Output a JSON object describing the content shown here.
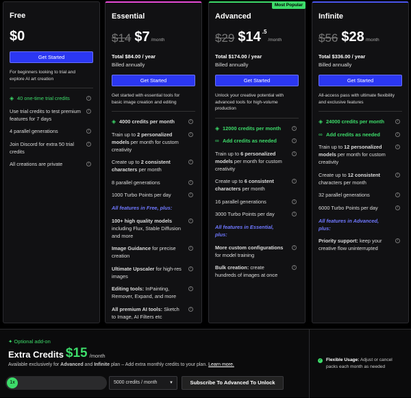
{
  "plans": [
    {
      "name": "Free",
      "price": "$0",
      "button": "Get Started",
      "description": "For beginners looking to trial and explore AI art creation",
      "features": [
        {
          "kind": "credit",
          "accent": true,
          "parts": [
            {
              "text": "40 one-time trial credits",
              "bold": false
            }
          ]
        },
        {
          "kind": "plain",
          "parts": [
            {
              "text": "Use trial credits to test premium features for 7 days",
              "bold": false
            }
          ]
        },
        {
          "kind": "plain",
          "parts": [
            {
              "text": "4 parallel generations",
              "bold": false
            }
          ]
        },
        {
          "kind": "plain",
          "parts": [
            {
              "text": "Join Discord for extra 50 trial credits",
              "bold": false
            }
          ]
        },
        {
          "kind": "plain",
          "parts": [
            {
              "text": "All creations are private",
              "bold": false
            }
          ]
        }
      ]
    },
    {
      "name": "Essential",
      "top_color": "#e84bd8",
      "old_price": "$14",
      "price": "$7",
      "period": "/month",
      "total": "Total $84.00 / year",
      "billing": "Billed annually",
      "button": "Get Started",
      "description": "Get started with essential tools for basic image creation and editing",
      "features": [
        {
          "kind": "credit",
          "accent": false,
          "parts": [
            {
              "text": "4000 credits per month",
              "bold": true
            }
          ]
        },
        {
          "kind": "plain",
          "parts": [
            {
              "text": "Train up to ",
              "bold": false
            },
            {
              "text": "2 personalized models",
              "bold": true
            },
            {
              "text": " per month for custom creativity",
              "bold": false
            }
          ]
        },
        {
          "kind": "plain",
          "parts": [
            {
              "text": "Create up to ",
              "bold": false
            },
            {
              "text": "2 consistent characters",
              "bold": true
            },
            {
              "text": " per month",
              "bold": false
            }
          ]
        },
        {
          "kind": "plain",
          "parts": [
            {
              "text": "8 parallel generations",
              "bold": false
            }
          ]
        },
        {
          "kind": "plain",
          "parts": [
            {
              "text": "1000 Turbo Points per day",
              "bold": false
            }
          ]
        },
        {
          "kind": "heading",
          "parts": [
            {
              "text": "All features in Free, plus:",
              "bold": true
            }
          ]
        },
        {
          "kind": "plain",
          "parts": [
            {
              "text": "100+ high quality models",
              "bold": true
            },
            {
              "text": " including Flux, Stable Diffusion and more",
              "bold": false
            }
          ]
        },
        {
          "kind": "plain",
          "parts": [
            {
              "text": "Image Guidance",
              "bold": true
            },
            {
              "text": " for precise creation",
              "bold": false
            }
          ]
        },
        {
          "kind": "plain",
          "parts": [
            {
              "text": "Ultimate Upscaler",
              "bold": true
            },
            {
              "text": " for high-res images",
              "bold": false
            }
          ]
        },
        {
          "kind": "plain",
          "parts": [
            {
              "text": "Editing tools:",
              "bold": true
            },
            {
              "text": " InPainting, Remover, Expand, and more",
              "bold": false
            }
          ]
        },
        {
          "kind": "plain",
          "parts": [
            {
              "text": "All premium AI tools:",
              "bold": true
            },
            {
              "text": " Sketch to Image, AI Filters etc",
              "bold": false
            }
          ]
        }
      ]
    },
    {
      "name": "Advanced",
      "top_color": "#3ddc6a",
      "badge": "Most Popular",
      "old_price": "$29",
      "price": "$14",
      "price_fraction": ".5",
      "period": "/month",
      "total": "Total $174.00 / year",
      "billing": "Billed annually",
      "button": "Get Started",
      "description": "Unlock your creative potential with advanced tools for high-volume production",
      "features": [
        {
          "kind": "credit",
          "accent": true,
          "parts": [
            {
              "text": "12000 credits per month",
              "bold": true
            }
          ]
        },
        {
          "kind": "addon",
          "accent": true,
          "parts": [
            {
              "text": "Add credits as needed",
              "bold": true
            }
          ]
        },
        {
          "kind": "plain",
          "parts": [
            {
              "text": "Train up to ",
              "bold": false
            },
            {
              "text": "6 personalized models",
              "bold": true
            },
            {
              "text": " per month for custom creativity",
              "bold": false
            }
          ]
        },
        {
          "kind": "plain",
          "parts": [
            {
              "text": "Create up to ",
              "bold": false
            },
            {
              "text": "6 consistent characters",
              "bold": true
            },
            {
              "text": " per month",
              "bold": false
            }
          ]
        },
        {
          "kind": "plain",
          "parts": [
            {
              "text": "16 parallel generations",
              "bold": false
            }
          ]
        },
        {
          "kind": "plain",
          "parts": [
            {
              "text": "3000 Turbo Points per day",
              "bold": false
            }
          ]
        },
        {
          "kind": "heading",
          "parts": [
            {
              "text": "All features in Essential, plus:",
              "bold": true
            }
          ]
        },
        {
          "kind": "plain",
          "parts": [
            {
              "text": "More custom configurations",
              "bold": true
            },
            {
              "text": " for model training",
              "bold": false
            }
          ]
        },
        {
          "kind": "plain",
          "parts": [
            {
              "text": "Bulk creation:",
              "bold": true
            },
            {
              "text": " create hundreds of images at once",
              "bold": false
            }
          ]
        }
      ]
    },
    {
      "name": "Infinite",
      "top_color": "#4b55f0",
      "old_price": "$56",
      "price": "$28",
      "period": "/month",
      "total": "Total $336.00 / year",
      "billing": "Billed annually",
      "button": "Get Started",
      "description": "All-access pass with ultimate flexibility and exclusive features",
      "features": [
        {
          "kind": "credit",
          "accent": true,
          "parts": [
            {
              "text": "24000 credits per month",
              "bold": true
            }
          ]
        },
        {
          "kind": "addon",
          "accent": true,
          "parts": [
            {
              "text": "Add credits as needed",
              "bold": true
            }
          ]
        },
        {
          "kind": "plain",
          "parts": [
            {
              "text": "Train up to ",
              "bold": false
            },
            {
              "text": "12 personalized models",
              "bold": true
            },
            {
              "text": " per month for custom creativity",
              "bold": false
            }
          ]
        },
        {
          "kind": "plain",
          "parts": [
            {
              "text": "Create up to ",
              "bold": false
            },
            {
              "text": "12 consistent",
              "bold": true
            },
            {
              "text": " characters per month",
              "bold": false
            }
          ]
        },
        {
          "kind": "plain",
          "parts": [
            {
              "text": "32 parallel generations",
              "bold": false
            }
          ]
        },
        {
          "kind": "plain",
          "parts": [
            {
              "text": "6000 Turbo Points per day",
              "bold": false
            }
          ]
        },
        {
          "kind": "heading",
          "parts": [
            {
              "text": "All features in Advanced, plus:",
              "bold": true
            }
          ]
        },
        {
          "kind": "plain",
          "parts": [
            {
              "text": "Priority support:",
              "bold": true
            },
            {
              "text": " keep your creative flow uninterrupted",
              "bold": false
            }
          ]
        }
      ]
    }
  ],
  "addon": {
    "label": "Optional add-on",
    "title": "Extra Credits",
    "price": "$15",
    "period": "/month",
    "description": [
      {
        "text": "Available exclusively for ",
        "bold": false
      },
      {
        "text": "Advanced",
        "bold": true
      },
      {
        "text": " and ",
        "bold": false
      },
      {
        "text": "Infinite",
        "bold": true
      },
      {
        "text": " plan – Add extra monthly credits to your plan. ",
        "bold": false
      }
    ],
    "link": "Learn more.",
    "multiplier": "1x",
    "select": "5000 credits / month",
    "button": "Subscribe To Advanced To Unlock",
    "note_title": "Flexible Usage:",
    "note_text": " Adjust or cancel packs each month as needed"
  }
}
